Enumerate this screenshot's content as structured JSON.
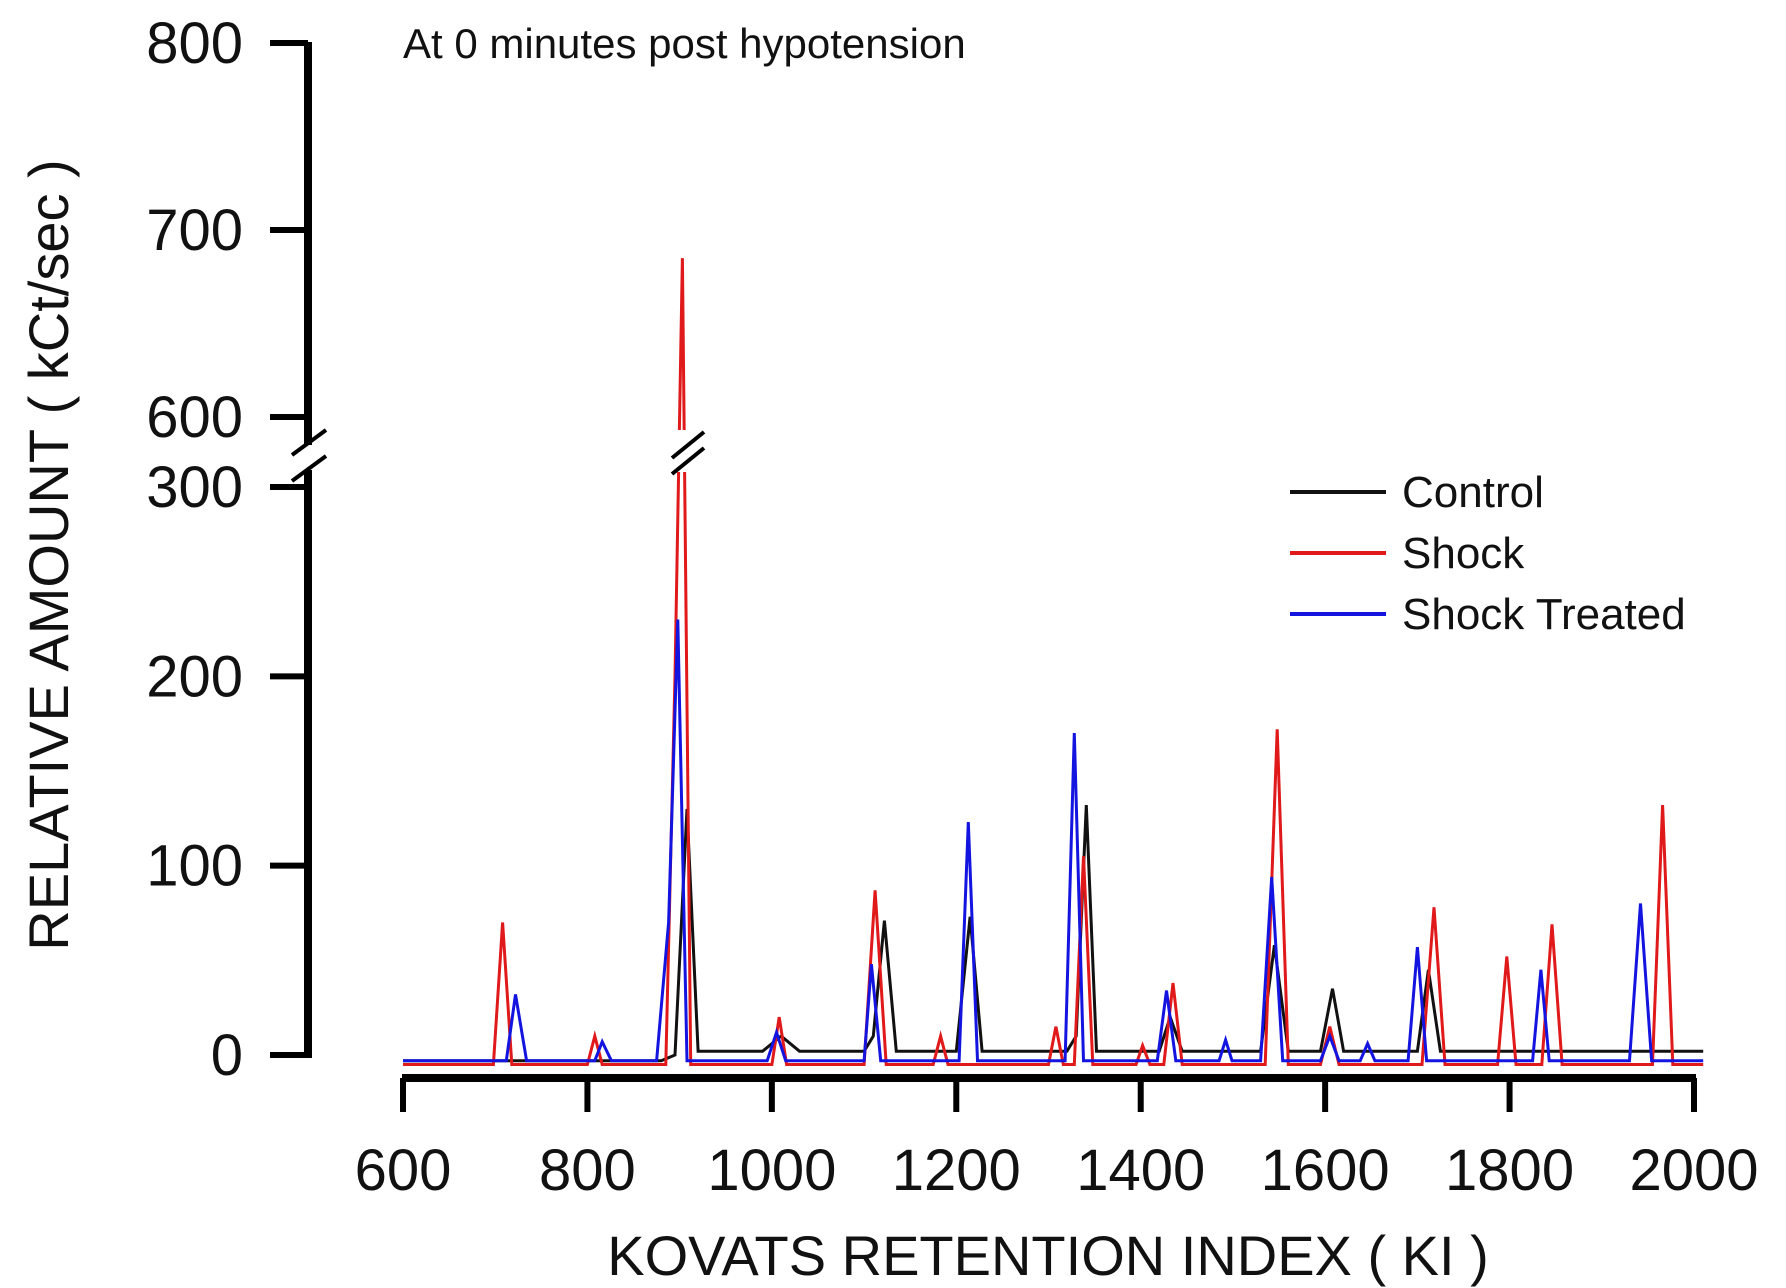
{
  "chart_data": {
    "type": "line",
    "subtitle": "At 0 minutes post hypotension",
    "xlabel": "KOVATS RETENTION INDEX ( KI )",
    "ylabel": "RELATIVE AMOUNT ( kCt/sec )",
    "xlim": [
      600,
      2000
    ],
    "x_ticks": [
      "600",
      "800",
      "1000",
      "1200",
      "1400",
      "1600",
      "1800",
      "2000"
    ],
    "x_tick_values": [
      600,
      800,
      1000,
      1200,
      1400,
      1600,
      1800,
      2000
    ],
    "y_ticks_lower": [
      "0",
      "100",
      "200",
      "300"
    ],
    "y_tick_values_lower": [
      0,
      100,
      200,
      300
    ],
    "y_ticks_upper": [
      "600",
      "700",
      "800"
    ],
    "y_tick_values_upper": [
      600,
      700,
      800
    ],
    "y_axis_break": [
      300,
      600
    ],
    "grid": false,
    "legend_position": "right",
    "series": [
      {
        "name": "Control",
        "color": "#111111",
        "x": [
          600,
          880,
          895,
          908,
          920,
          990,
          1010,
          1030,
          1100,
          1110,
          1122,
          1135,
          1200,
          1215,
          1228,
          1320,
          1330,
          1341,
          1352,
          1420,
          1432,
          1445,
          1530,
          1545,
          1560,
          1595,
          1608,
          1620,
          1700,
          1712,
          1725,
          2010
        ],
        "y": [
          -3,
          -3,
          0,
          130,
          2,
          2,
          10,
          2,
          2,
          10,
          71,
          2,
          2,
          73,
          2,
          2,
          10,
          132,
          2,
          2,
          20,
          2,
          2,
          58,
          2,
          2,
          35,
          2,
          2,
          45,
          2,
          2
        ]
      },
      {
        "name": "Shock",
        "color": "#e0191a",
        "x": [
          600,
          698,
          708,
          718,
          800,
          808,
          816,
          885,
          895,
          903,
          912,
          1000,
          1008,
          1016,
          1100,
          1112,
          1124,
          1175,
          1183,
          1191,
          1300,
          1308,
          1316,
          1328,
          1338,
          1348,
          1395,
          1402,
          1410,
          1425,
          1435,
          1445,
          1535,
          1548,
          1560,
          1595,
          1605,
          1615,
          1705,
          1718,
          1730,
          1787,
          1797,
          1807,
          1835,
          1846,
          1857,
          1955,
          1966,
          1977,
          2010
        ],
        "y": [
          -5,
          -5,
          70,
          -5,
          -5,
          10,
          -5,
          -5,
          200,
          685,
          -5,
          -5,
          20,
          -5,
          -5,
          87,
          -5,
          -5,
          10,
          -5,
          -5,
          15,
          -5,
          -5,
          105,
          -5,
          -5,
          5,
          -5,
          -5,
          38,
          -5,
          -5,
          172,
          -5,
          -5,
          15,
          -5,
          -5,
          78,
          -5,
          -5,
          52,
          -5,
          -5,
          69,
          -5,
          -5,
          132,
          -5,
          -5
        ]
      },
      {
        "name": "Shock Treated",
        "color": "#1414e0",
        "x": [
          600,
          712,
          722,
          734,
          808,
          816,
          826,
          875,
          888,
          898,
          908,
          995,
          1005,
          1015,
          1100,
          1108,
          1118,
          1203,
          1213,
          1223,
          1318,
          1328,
          1338,
          1418,
          1428,
          1438,
          1485,
          1492,
          1499,
          1530,
          1542,
          1554,
          1595,
          1605,
          1615,
          1638,
          1646,
          1654,
          1690,
          1700,
          1710,
          1825,
          1834,
          1843,
          1930,
          1942,
          1954,
          2010
        ],
        "y": [
          -3,
          -3,
          32,
          -3,
          -3,
          7,
          -3,
          -3,
          70,
          230,
          -3,
          -3,
          12,
          -3,
          -3,
          48,
          -3,
          -3,
          123,
          -3,
          -3,
          170,
          -3,
          -3,
          34,
          -3,
          -3,
          8,
          -3,
          -3,
          94,
          -3,
          -3,
          10,
          -3,
          -3,
          6,
          -3,
          -3,
          57,
          -3,
          -3,
          45,
          -3,
          -3,
          80,
          -3,
          -3
        ]
      }
    ]
  }
}
